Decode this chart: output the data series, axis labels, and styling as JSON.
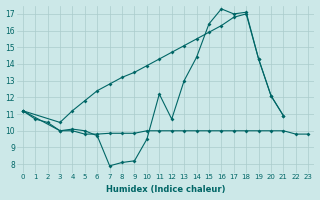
{
  "xlabel": "Humidex (Indice chaleur)",
  "bg_color": "#cce8e8",
  "line_color": "#006666",
  "grid_color": "#aacccc",
  "xlim": [
    -0.5,
    23.5
  ],
  "ylim": [
    7.5,
    17.5
  ],
  "xticks": [
    0,
    1,
    2,
    3,
    4,
    5,
    6,
    7,
    8,
    9,
    10,
    11,
    12,
    13,
    14,
    15,
    16,
    17,
    18,
    19,
    20,
    21,
    22,
    23
  ],
  "yticks": [
    8,
    9,
    10,
    11,
    12,
    13,
    14,
    15,
    16,
    17
  ],
  "line1_x": [
    0,
    1,
    2,
    3,
    4,
    5,
    6,
    7,
    8,
    9,
    10,
    11,
    12,
    13,
    14,
    15,
    16,
    17,
    18,
    19,
    20,
    21
  ],
  "line1_y": [
    11.2,
    10.7,
    10.5,
    10.0,
    10.1,
    10.0,
    9.7,
    7.9,
    8.1,
    8.2,
    9.5,
    12.2,
    10.7,
    13.0,
    14.4,
    16.4,
    17.3,
    17.0,
    17.1,
    14.3,
    12.1,
    10.9
  ],
  "line2_x": [
    0,
    3,
    4,
    5,
    6,
    7,
    8,
    9,
    10,
    11,
    12,
    13,
    14,
    15,
    16,
    17,
    18,
    19,
    20,
    21
  ],
  "line2_y": [
    11.2,
    10.5,
    11.2,
    11.8,
    12.4,
    12.8,
    13.2,
    13.5,
    13.9,
    14.3,
    14.7,
    15.1,
    15.5,
    15.9,
    16.3,
    16.8,
    17.0,
    14.3,
    12.1,
    10.9
  ],
  "line3_x": [
    0,
    3,
    4,
    5,
    6,
    7,
    8,
    9,
    10,
    11,
    12,
    13,
    14,
    15,
    16,
    17,
    18,
    19,
    20,
    21,
    22,
    23
  ],
  "line3_y": [
    11.2,
    10.0,
    10.0,
    9.8,
    9.8,
    9.85,
    9.85,
    9.85,
    10.0,
    10.0,
    10.0,
    10.0,
    10.0,
    10.0,
    10.0,
    10.0,
    10.0,
    10.0,
    10.0,
    10.0,
    9.8,
    9.8
  ]
}
